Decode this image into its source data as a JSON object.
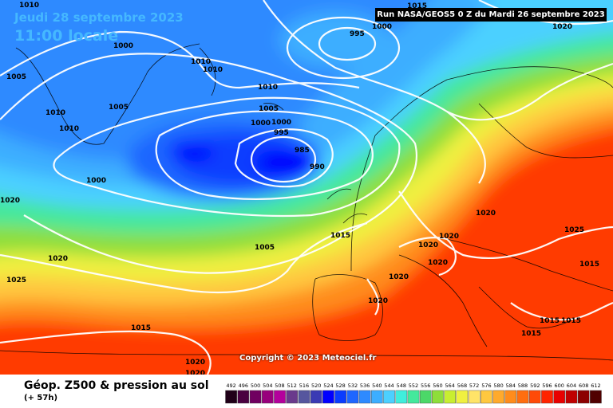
{
  "header": {
    "date": "Jeudi 28 septembre 2023",
    "local_time": "11:00 locale",
    "run": "Run NASA/GEOS5 0 Z du Mardi 26 septembre 2023"
  },
  "copyright": "Copyright © 2023 Meteociel.fr",
  "legend": {
    "title": "Géop. Z500 & pression au sol",
    "subtitle": "(+ 57h)",
    "scale": [
      {
        "label": "492",
        "color": "#200018"
      },
      {
        "label": "496",
        "color": "#4a0040"
      },
      {
        "label": "500",
        "color": "#700060"
      },
      {
        "label": "504",
        "color": "#98007c"
      },
      {
        "label": "508",
        "color": "#b4009c"
      },
      {
        "label": "512",
        "color": "#6a3a8c"
      },
      {
        "label": "516",
        "color": "#56569e"
      },
      {
        "label": "520",
        "color": "#3a3ab4"
      },
      {
        "label": "524",
        "color": "#0000ff"
      },
      {
        "label": "528",
        "color": "#0a3cff"
      },
      {
        "label": "532",
        "color": "#1e66ff"
      },
      {
        "label": "536",
        "color": "#2e8aff"
      },
      {
        "label": "540",
        "color": "#3caeff"
      },
      {
        "label": "544",
        "color": "#4cd0ff"
      },
      {
        "label": "548",
        "color": "#40eedc"
      },
      {
        "label": "552",
        "color": "#44e89c"
      },
      {
        "label": "556",
        "color": "#4cd868"
      },
      {
        "label": "560",
        "color": "#8ede3a"
      },
      {
        "label": "564",
        "color": "#c8ee30"
      },
      {
        "label": "568",
        "color": "#f0f040"
      },
      {
        "label": "572",
        "color": "#ffe468"
      },
      {
        "label": "576",
        "color": "#ffc840"
      },
      {
        "label": "580",
        "color": "#ffaa2c"
      },
      {
        "label": "584",
        "color": "#ff8c1c"
      },
      {
        "label": "588",
        "color": "#ff6e10"
      },
      {
        "label": "592",
        "color": "#ff4a08"
      },
      {
        "label": "596",
        "color": "#ff2400"
      },
      {
        "label": "600",
        "color": "#e80000"
      },
      {
        "label": "604",
        "color": "#c00000"
      },
      {
        "label": "608",
        "color": "#8c0000"
      },
      {
        "label": "612",
        "color": "#500000"
      }
    ]
  },
  "isobars": [
    {
      "label": "1010"
    },
    {
      "label": "1015"
    },
    {
      "label": "1000"
    },
    {
      "label": "995"
    },
    {
      "label": "1000"
    },
    {
      "label": "1020"
    },
    {
      "label": "1010"
    },
    {
      "label": "1010"
    },
    {
      "label": "1005"
    },
    {
      "label": "1010"
    },
    {
      "label": "1005"
    },
    {
      "label": "1005"
    },
    {
      "label": "1010"
    },
    {
      "label": "1010"
    },
    {
      "label": "1000"
    },
    {
      "label": "1000"
    },
    {
      "label": "995"
    },
    {
      "label": "985"
    },
    {
      "label": "990"
    },
    {
      "label": "1000"
    },
    {
      "label": "1020"
    },
    {
      "label": "1020"
    },
    {
      "label": "1015"
    },
    {
      "label": "1005"
    },
    {
      "label": "1020"
    },
    {
      "label": "1025"
    },
    {
      "label": "1020"
    },
    {
      "label": "1020"
    },
    {
      "label": "1020"
    },
    {
      "label": "1025"
    },
    {
      "label": "1015"
    },
    {
      "label": "1020"
    },
    {
      "label": "1020"
    },
    {
      "label": "1015"
    },
    {
      "label": "1015"
    },
    {
      "label": "1015"
    },
    {
      "label": "1020"
    },
    {
      "label": "1020"
    },
    {
      "label": "1015"
    }
  ]
}
